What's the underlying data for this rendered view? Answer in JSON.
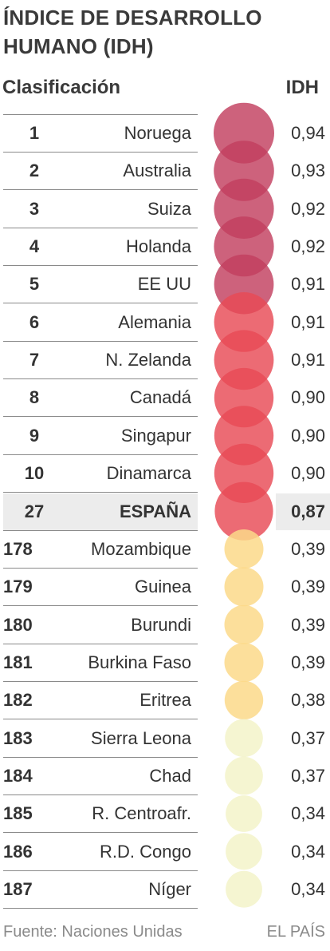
{
  "title": "ÍNDICE DE DESARROLLO HUMANO (IDH)",
  "header": {
    "rank_label": "Clasificación",
    "value_label": "IDH"
  },
  "chart_data": {
    "type": "table",
    "title": "ÍNDICE DE DESARROLLO HUMANO (IDH)",
    "columns": [
      "Clasificación",
      "IDH"
    ],
    "rows": [
      {
        "rank": "1",
        "country": "Noruega",
        "idh": "0,94",
        "value": 0.94,
        "color": "#c2405f"
      },
      {
        "rank": "2",
        "country": "Australia",
        "idh": "0,93",
        "value": 0.93,
        "color": "#c2405f"
      },
      {
        "rank": "3",
        "country": "Suiza",
        "idh": "0,92",
        "value": 0.92,
        "color": "#c2405f"
      },
      {
        "rank": "4",
        "country": "Holanda",
        "idh": "0,92",
        "value": 0.92,
        "color": "#c2405f"
      },
      {
        "rank": "5",
        "country": "EE UU",
        "idh": "0,91",
        "value": 0.91,
        "color": "#c2405f"
      },
      {
        "rank": "6",
        "country": "Alemania",
        "idh": "0,91",
        "value": 0.91,
        "color": "#e84a55"
      },
      {
        "rank": "7",
        "country": "N. Zelanda",
        "idh": "0,91",
        "value": 0.91,
        "color": "#e84a55"
      },
      {
        "rank": "8",
        "country": "Canadá",
        "idh": "0,90",
        "value": 0.9,
        "color": "#e84a55"
      },
      {
        "rank": "9",
        "country": "Singapur",
        "idh": "0,90",
        "value": 0.9,
        "color": "#e84a55"
      },
      {
        "rank": "10",
        "country": "Dinamarca",
        "idh": "0,90",
        "value": 0.9,
        "color": "#e84a55"
      },
      {
        "rank": "27",
        "country": "ESPAÑA",
        "idh": "0,87",
        "value": 0.87,
        "color": "#e84a55",
        "highlight": true
      },
      {
        "rank": "178",
        "country": "Mozambique",
        "idh": "0,39",
        "value": 0.39,
        "color": "#fbd98a"
      },
      {
        "rank": "179",
        "country": "Guinea",
        "idh": "0,39",
        "value": 0.39,
        "color": "#fbd98a"
      },
      {
        "rank": "180",
        "country": "Burundi",
        "idh": "0,39",
        "value": 0.39,
        "color": "#fbd98a"
      },
      {
        "rank": "181",
        "country": "Burkina Faso",
        "idh": "0,39",
        "value": 0.39,
        "color": "#fbd98a"
      },
      {
        "rank": "182",
        "country": "Eritrea",
        "idh": "0,38",
        "value": 0.38,
        "color": "#fbd98a"
      },
      {
        "rank": "183",
        "country": "Sierra Leona",
        "idh": "0,37",
        "value": 0.37,
        "color": "#f3f3c9"
      },
      {
        "rank": "184",
        "country": "Chad",
        "idh": "0,37",
        "value": 0.37,
        "color": "#f3f3c9"
      },
      {
        "rank": "185",
        "country": "R. Centroafr.",
        "idh": "0,34",
        "value": 0.34,
        "color": "#f3f3c9"
      },
      {
        "rank": "186",
        "country": "R.D. Congo",
        "idh": "0,34",
        "value": 0.34,
        "color": "#f3f3c9"
      },
      {
        "rank": "187",
        "country": "Níger",
        "idh": "0,34",
        "value": 0.34,
        "color": "#f3f3c9"
      }
    ]
  },
  "footer": {
    "source": "Fuente: Naciones Unidas",
    "credit": "EL PAÍS"
  }
}
